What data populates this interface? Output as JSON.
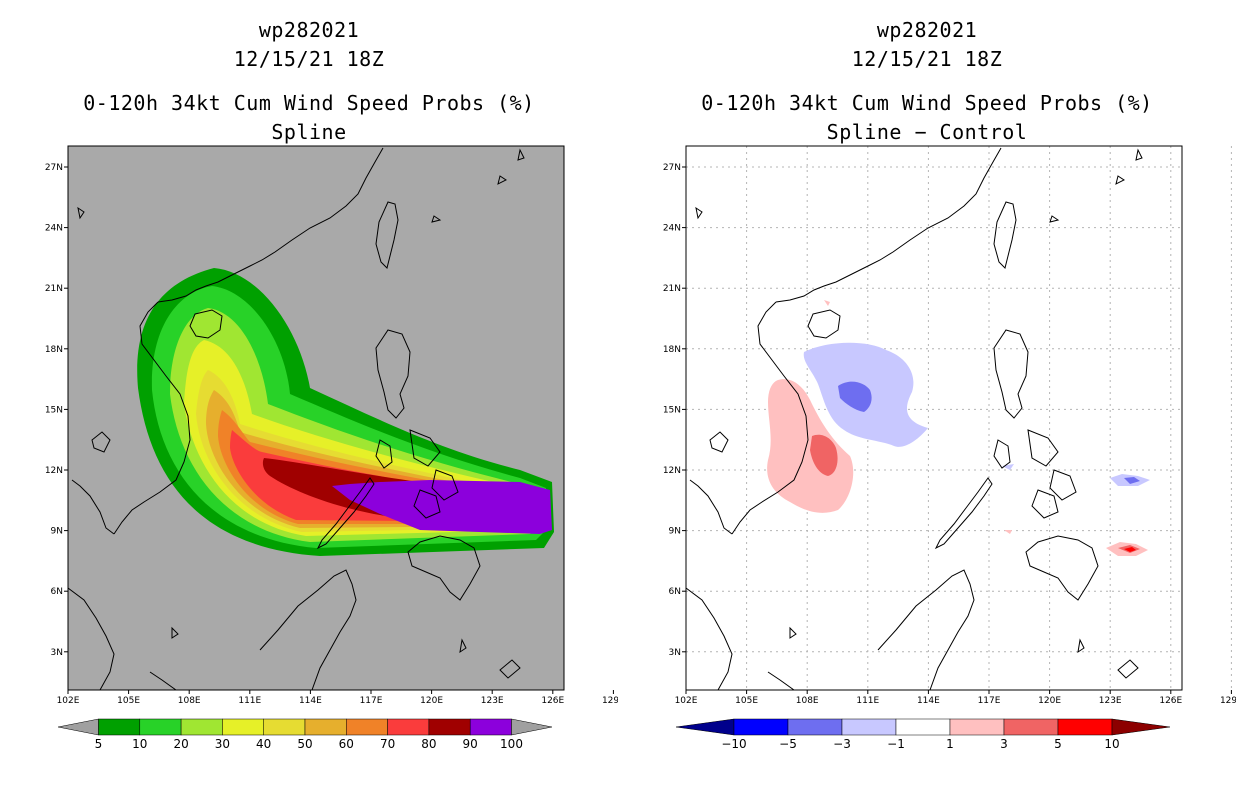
{
  "left": {
    "storm_id": "wp282021",
    "datetime": "12/15/21 18Z",
    "product": "0-120h 34kt Cum Wind Speed Probs (%)",
    "subtitle": "Spline",
    "background_color": "#a9a9a9",
    "colorbar": {
      "labels": [
        "5",
        "10",
        "20",
        "30",
        "40",
        "50",
        "60",
        "70",
        "80",
        "90",
        "100"
      ],
      "colors": [
        "#a0a0a0",
        "#00a000",
        "#28d228",
        "#a0e632",
        "#e6f028",
        "#e6dc32",
        "#e6af2d",
        "#f08228",
        "#fa3c3c",
        "#a00000",
        "#8c00dc",
        "#a0a0a0"
      ]
    }
  },
  "right": {
    "storm_id": "wp282021",
    "datetime": "12/15/21 18Z",
    "product": "0-120h 34kt Cum Wind Speed Probs (%)",
    "subtitle": "Spline − Control",
    "background_color": "#ffffff",
    "colorbar": {
      "labels": [
        "−10",
        "−5",
        "−3",
        "−1",
        "1",
        "3",
        "5",
        "10"
      ],
      "colors": [
        "#00008c",
        "#0000ff",
        "#6e6ef0",
        "#c8c8ff",
        "#ffffff",
        "#ffc0c0",
        "#f06464",
        "#ff0000",
        "#8c0000"
      ]
    }
  },
  "axes": {
    "lat_labels": [
      "27N",
      "24N",
      "21N",
      "18N",
      "15N",
      "12N",
      "9N",
      "6N",
      "3N"
    ],
    "lon_labels": [
      "102E",
      "105E",
      "108E",
      "111E",
      "114E",
      "117E",
      "120E",
      "123E",
      "126E",
      "129E"
    ]
  }
}
